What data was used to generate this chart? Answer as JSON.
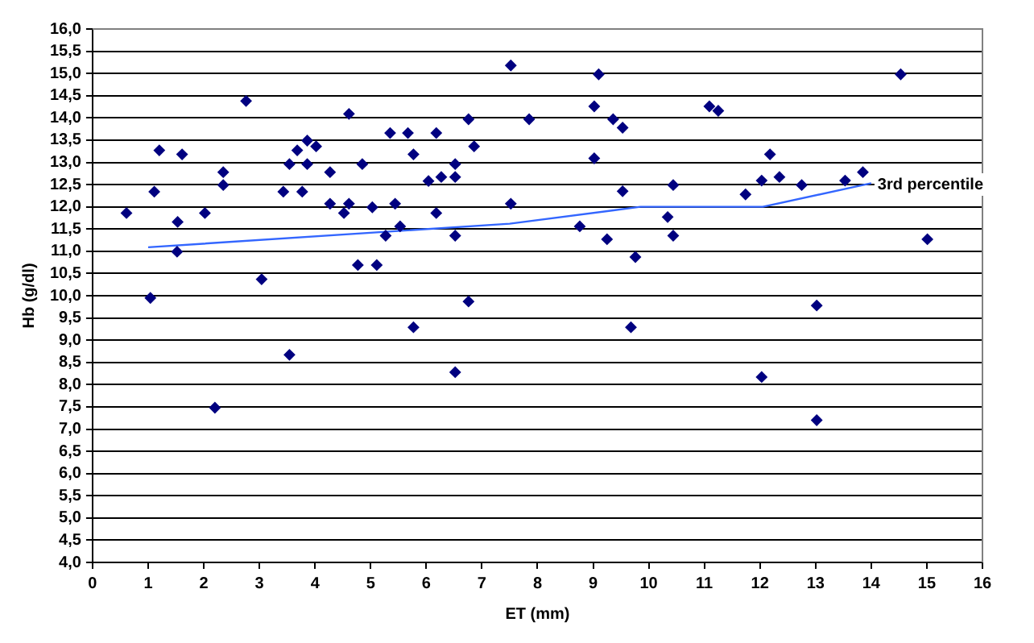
{
  "chart_data": {
    "type": "scatter",
    "xlabel": "ET (mm)",
    "ylabel": "Hb (g/dl)",
    "xlim": [
      0,
      16
    ],
    "xticks": [
      0,
      1,
      2,
      3,
      4,
      5,
      6,
      7,
      8,
      9,
      10,
      11,
      12,
      13,
      14,
      15,
      16
    ],
    "ylim": [
      4,
      16
    ],
    "yticks": [
      {
        "value": 4,
        "label": "4,0"
      },
      {
        "value": 4.5,
        "label": "4,5"
      },
      {
        "value": 5,
        "label": "5,0"
      },
      {
        "value": 5.5,
        "label": "5,5"
      },
      {
        "value": 6,
        "label": "6,0"
      },
      {
        "value": 6.5,
        "label": "6,5"
      },
      {
        "value": 7,
        "label": "7,0"
      },
      {
        "value": 7.5,
        "label": "7,5"
      },
      {
        "value": 8,
        "label": "8,0"
      },
      {
        "value": 8.5,
        "label": "8,5"
      },
      {
        "value": 9,
        "label": "9,0"
      },
      {
        "value": 9.5,
        "label": "9,5"
      },
      {
        "value": 10,
        "label": "10,0"
      },
      {
        "value": 10.5,
        "label": "10,5"
      },
      {
        "value": 11,
        "label": "11,0"
      },
      {
        "value": 11.5,
        "label": "11,5"
      },
      {
        "value": 12,
        "label": "12,0"
      },
      {
        "value": 12.5,
        "label": "12,5"
      },
      {
        "value": 13,
        "label": "13,0"
      },
      {
        "value": 13.5,
        "label": "13,5"
      },
      {
        "value": 14,
        "label": "14,0"
      },
      {
        "value": 14.5,
        "label": "14,5"
      },
      {
        "value": 15,
        "label": "15,0"
      },
      {
        "value": 15.5,
        "label": "15,5"
      },
      {
        "value": 16,
        "label": "16,0"
      }
    ],
    "grid": "y",
    "legend": false,
    "annotations": [
      {
        "text": "3rd percentile",
        "x": 14,
        "y": 12.5
      }
    ],
    "series": [
      {
        "color": "#000080",
        "marker": "diamond",
        "x": [
          0.61,
          1.04,
          1.11,
          1.2,
          1.52,
          1.53,
          1.61,
          2.02,
          2.35,
          2.35,
          2.76,
          3.04,
          3.43,
          3.54,
          3.68,
          3.77,
          3.86,
          3.86,
          4.02,
          4.27,
          4.27,
          4.52,
          4.61,
          4.61,
          4.77,
          4.85,
          5.03,
          5.11,
          5.27,
          5.35,
          5.44,
          5.53,
          5.67,
          5.77,
          6.04,
          6.18,
          6.18,
          6.27,
          6.52,
          6.52,
          6.52,
          6.76,
          6.76,
          6.86,
          7.52,
          7.52,
          2.2,
          3.54,
          5.77,
          6.52,
          7.85,
          9.02,
          9.1,
          9.36,
          9.53,
          9.02,
          8.76,
          9.25,
          9.53,
          9.76,
          10.34,
          10.44,
          10.44,
          11.09,
          11.25,
          11.74,
          12.03,
          12.18,
          12.35,
          12.75,
          13.53,
          13.85,
          14.53,
          15.01,
          13.02,
          9.68,
          12.03,
          13.02
        ],
        "values": [
          11.86,
          9.95,
          12.34,
          13.27,
          10.99,
          11.66,
          13.18,
          11.86,
          12.78,
          12.49,
          14.38,
          10.37,
          12.34,
          12.96,
          13.27,
          12.34,
          13.49,
          12.96,
          13.36,
          12.78,
          12.07,
          11.86,
          14.09,
          12.07,
          10.69,
          12.96,
          11.99,
          10.69,
          11.35,
          13.66,
          12.07,
          11.56,
          13.66,
          13.18,
          12.58,
          13.66,
          11.86,
          12.67,
          12.96,
          12.67,
          11.35,
          13.97,
          9.87,
          13.36,
          15.18,
          12.07,
          7.48,
          8.67,
          9.29,
          8.28,
          13.97,
          14.26,
          14.98,
          13.97,
          13.78,
          13.09,
          11.56,
          11.27,
          12.35,
          10.87,
          11.77,
          11.35,
          12.49,
          14.26,
          14.16,
          12.28,
          12.59,
          13.18,
          12.67,
          12.49,
          12.59,
          12.78,
          14.98,
          11.27,
          9.78,
          9.29,
          8.17,
          7.2
        ]
      },
      {
        "type": "line",
        "color": "#3366ff",
        "marker": "none",
        "line_style": "solid",
        "x": [
          1,
          7.5,
          9.85,
          12.05,
          14
        ],
        "values": [
          11.09,
          11.62,
          12,
          12,
          12.53
        ]
      }
    ]
  }
}
